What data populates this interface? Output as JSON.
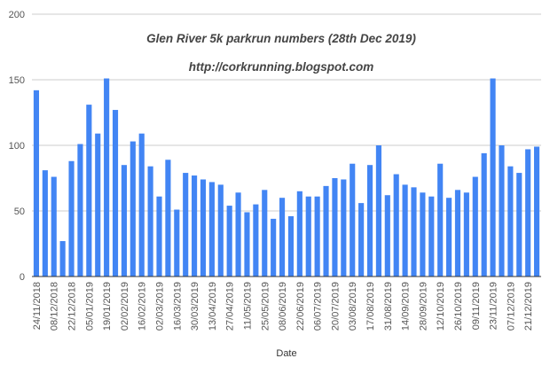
{
  "chart_data": {
    "type": "bar",
    "title": "Glen River 5k parkrun numbers (28th Dec 2019)",
    "subtitle": "http://corkrunning.blogspot.com",
    "xlabel": "Date",
    "ylabel": "",
    "ylim": [
      0,
      200
    ],
    "yticks": [
      "0",
      "50",
      "100",
      "150",
      "200"
    ],
    "grid": true,
    "legend": "none",
    "bar_color": "#4285f4",
    "grid_color": "#cccccc",
    "axis_color": "#333333",
    "x_tick_labels": [
      {
        "index": 0,
        "label": "24/11/2018"
      },
      {
        "index": 2,
        "label": "08/12/2018"
      },
      {
        "index": 4,
        "label": "22/12/2018"
      },
      {
        "index": 6,
        "label": "05/01/2019"
      },
      {
        "index": 8,
        "label": "19/01/2019"
      },
      {
        "index": 10,
        "label": "02/02/2019"
      },
      {
        "index": 12,
        "label": "16/02/2019"
      },
      {
        "index": 14,
        "label": "02/03/2019"
      },
      {
        "index": 16,
        "label": "16/03/2019"
      },
      {
        "index": 18,
        "label": "30/03/2019"
      },
      {
        "index": 20,
        "label": "13/04/2019"
      },
      {
        "index": 22,
        "label": "27/04/2019"
      },
      {
        "index": 24,
        "label": "11/05/2019"
      },
      {
        "index": 26,
        "label": "25/05/2019"
      },
      {
        "index": 28,
        "label": "08/06/2019"
      },
      {
        "index": 30,
        "label": "22/06/2019"
      },
      {
        "index": 32,
        "label": "06/07/2019"
      },
      {
        "index": 34,
        "label": "20/07/2019"
      },
      {
        "index": 36,
        "label": "03/08/2019"
      },
      {
        "index": 38,
        "label": "17/08/2019"
      },
      {
        "index": 40,
        "label": "31/08/2019"
      },
      {
        "index": 42,
        "label": "14/09/2019"
      },
      {
        "index": 44,
        "label": "28/09/2019"
      },
      {
        "index": 46,
        "label": "12/10/2019"
      },
      {
        "index": 48,
        "label": "26/10/2019"
      },
      {
        "index": 50,
        "label": "09/11/2019"
      },
      {
        "index": 52,
        "label": "23/11/2019"
      },
      {
        "index": 54,
        "label": "07/12/2019"
      },
      {
        "index": 56,
        "label": "21/12/2019"
      }
    ],
    "values": [
      142,
      81,
      76,
      27,
      88,
      101,
      131,
      109,
      151,
      127,
      85,
      103,
      109,
      84,
      61,
      89,
      51,
      79,
      77,
      74,
      72,
      70,
      54,
      64,
      49,
      55,
      66,
      44,
      60,
      46,
      65,
      61,
      61,
      69,
      75,
      74,
      86,
      56,
      85,
      100,
      62,
      78,
      70,
      68,
      64,
      61,
      86,
      60,
      66,
      64,
      76,
      94,
      151,
      100,
      84,
      79,
      97,
      99
    ]
  }
}
